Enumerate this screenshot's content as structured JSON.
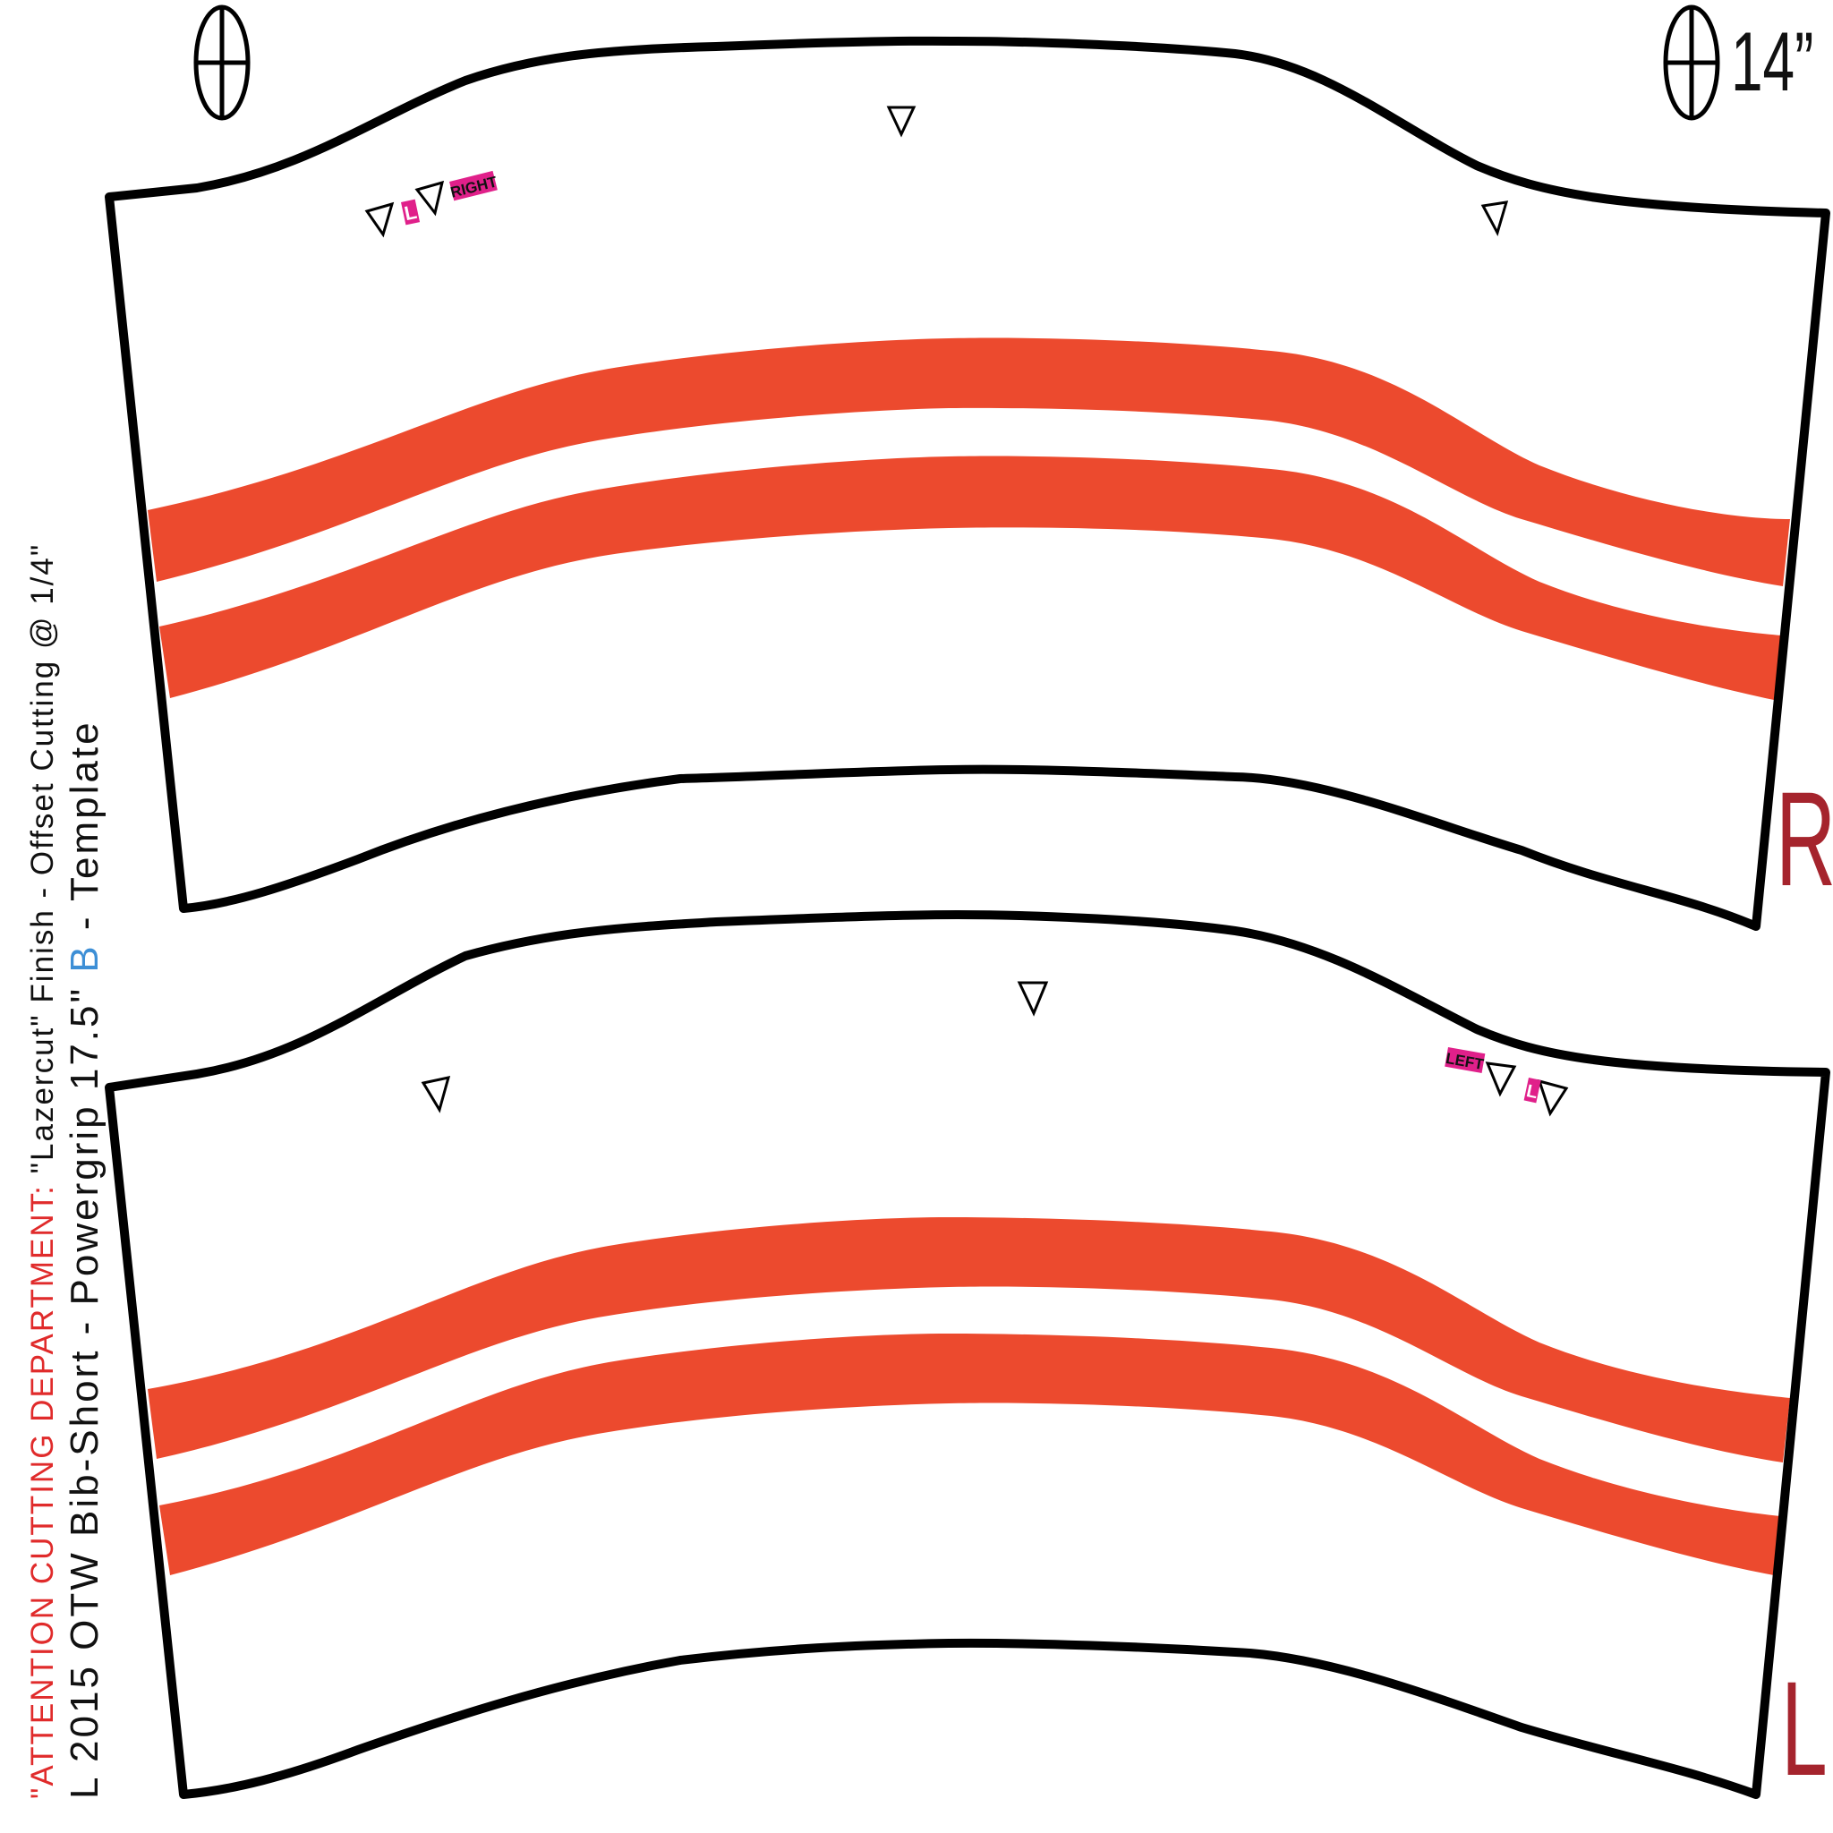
{
  "side_label": {
    "attention": "\"ATTENTION CUTTING DEPARTMENT: ",
    "finish_text": "\"Lazercut\"  Finish - Offset Cutting @ 1/4\"",
    "line2_prefix": "L  2015  OTW  Bib-Short  -  Powergrip  17.5\" ",
    "line2_highlight": "B",
    "line2_suffix": "  -  Template"
  },
  "size_mark": "14”",
  "pieces": {
    "right": {
      "side_letter": "R",
      "notch_labels": [
        "L",
        "RIGHT"
      ]
    },
    "left": {
      "side_letter": "L",
      "notch_labels": [
        "LEFT",
        "L"
      ]
    }
  },
  "colors": {
    "stripe": "#ec4a2e",
    "outline": "#000000",
    "side_letter": "#a5242d",
    "notch_label_bg": "#e0208a",
    "attention_text": "#e02b2b",
    "highlight_text": "#3d8fd6"
  }
}
